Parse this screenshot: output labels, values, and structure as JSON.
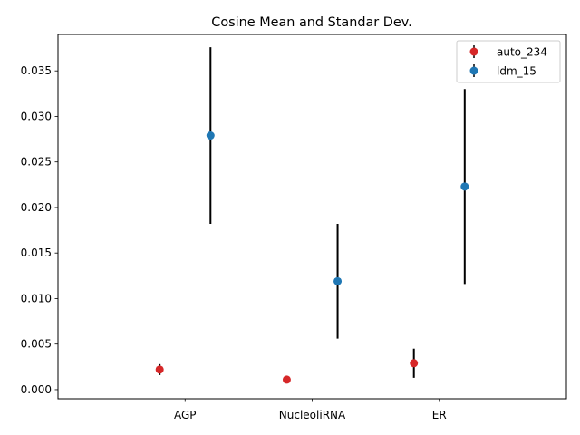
{
  "chart_data": {
    "type": "scatter",
    "title": "Cosine Mean and Standar Dev.",
    "xlabel": "",
    "ylabel": "",
    "categories": [
      "AGP",
      "NucleoliRNA",
      "ER"
    ],
    "yticks": [
      "0.000",
      "0.005",
      "0.010",
      "0.015",
      "0.020",
      "0.025",
      "0.030",
      "0.035"
    ],
    "ylim": [
      -0.001,
      0.039
    ],
    "xlim": [
      -1.0,
      1.0
    ],
    "legend_position": "top-right",
    "grid": false,
    "series": [
      {
        "name": "auto_234",
        "color": "#d62728",
        "x": [
          -0.6,
          -0.1,
          0.4
        ],
        "mean": [
          0.0022,
          0.0011,
          0.0029
        ],
        "std": [
          0.0006,
          0.0001,
          0.0016
        ]
      },
      {
        "name": "ldm_15",
        "color": "#1f77b4",
        "x": [
          -0.4,
          0.1,
          0.6
        ],
        "mean": [
          0.0279,
          0.0119,
          0.0223
        ],
        "std": [
          0.0097,
          0.0063,
          0.0107
        ]
      }
    ],
    "errorbar_color": "#000000"
  }
}
